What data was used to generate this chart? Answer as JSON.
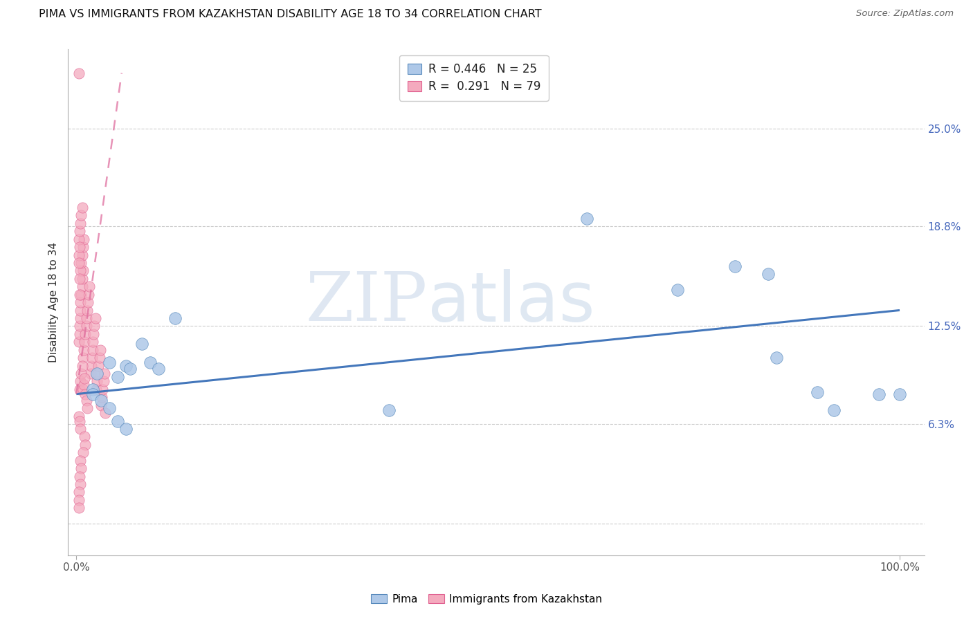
{
  "title": "PIMA VS IMMIGRANTS FROM KAZAKHSTAN DISABILITY AGE 18 TO 34 CORRELATION CHART",
  "source": "Source: ZipAtlas.com",
  "ylabel": "Disability Age 18 to 34",
  "xlim": [
    -0.01,
    1.03
  ],
  "ylim": [
    -0.02,
    0.3
  ],
  "xtick_vals": [
    0.0,
    1.0
  ],
  "xticklabels": [
    "0.0%",
    "100.0%"
  ],
  "ytick_vals": [
    0.0,
    0.063,
    0.125,
    0.188,
    0.25
  ],
  "ytick_labels": [
    "",
    "6.3%",
    "12.5%",
    "18.8%",
    "25.0%"
  ],
  "watermark_zip": "ZIP",
  "watermark_atlas": "atlas",
  "legend_r1": "R = 0.446",
  "legend_n1": "N = 25",
  "legend_r2": "R =  0.291",
  "legend_n2": "N = 79",
  "blue_fill": "#aec8e8",
  "blue_edge": "#5588bb",
  "pink_fill": "#f4aabe",
  "pink_edge": "#e06090",
  "blue_line": "#4477bb",
  "pink_line": "#dd6699",
  "grid_color": "#cccccc",
  "pima_x": [
    0.02,
    0.025,
    0.04,
    0.05,
    0.06,
    0.065,
    0.08,
    0.09,
    0.1,
    0.12,
    0.02,
    0.03,
    0.04,
    0.05,
    0.06,
    0.38,
    0.62,
    0.73,
    0.8,
    0.84,
    0.85,
    0.9,
    0.92,
    0.975,
    1.0
  ],
  "pima_y": [
    0.085,
    0.095,
    0.102,
    0.093,
    0.1,
    0.098,
    0.114,
    0.102,
    0.098,
    0.13,
    0.082,
    0.078,
    0.073,
    0.065,
    0.06,
    0.072,
    0.193,
    0.148,
    0.163,
    0.158,
    0.105,
    0.083,
    0.072,
    0.082,
    0.082
  ],
  "imm_x": [
    0.003,
    0.004,
    0.004,
    0.005,
    0.005,
    0.005,
    0.006,
    0.007,
    0.007,
    0.008,
    0.008,
    0.009,
    0.01,
    0.011,
    0.012,
    0.012,
    0.013,
    0.014,
    0.015,
    0.016,
    0.017,
    0.018,
    0.019,
    0.02,
    0.02,
    0.021,
    0.022,
    0.023,
    0.024,
    0.025,
    0.026,
    0.027,
    0.028,
    0.029,
    0.03,
    0.031,
    0.032,
    0.033,
    0.034,
    0.035,
    0.004,
    0.005,
    0.006,
    0.007,
    0.008,
    0.009,
    0.01,
    0.011,
    0.012,
    0.013,
    0.003,
    0.004,
    0.005,
    0.005,
    0.006,
    0.007,
    0.008,
    0.009,
    0.01,
    0.011,
    0.003,
    0.004,
    0.005,
    0.006,
    0.007,
    0.008,
    0.003,
    0.004,
    0.005,
    0.006,
    0.003,
    0.004,
    0.005,
    0.003,
    0.004,
    0.003,
    0.004,
    0.003,
    0.003
  ],
  "imm_y": [
    0.115,
    0.12,
    0.125,
    0.13,
    0.135,
    0.14,
    0.145,
    0.15,
    0.155,
    0.16,
    0.105,
    0.11,
    0.115,
    0.12,
    0.125,
    0.13,
    0.135,
    0.14,
    0.145,
    0.15,
    0.095,
    0.1,
    0.105,
    0.11,
    0.115,
    0.12,
    0.125,
    0.13,
    0.085,
    0.09,
    0.095,
    0.1,
    0.105,
    0.11,
    0.075,
    0.08,
    0.085,
    0.09,
    0.095,
    0.07,
    0.085,
    0.09,
    0.095,
    0.1,
    0.085,
    0.088,
    0.092,
    0.082,
    0.078,
    0.073,
    0.068,
    0.065,
    0.06,
    0.16,
    0.165,
    0.17,
    0.175,
    0.18,
    0.055,
    0.05,
    0.18,
    0.185,
    0.19,
    0.195,
    0.2,
    0.045,
    0.17,
    0.175,
    0.04,
    0.035,
    0.165,
    0.03,
    0.025,
    0.285,
    0.155,
    0.02,
    0.145,
    0.015,
    0.01
  ],
  "blue_trend": [
    0.0,
    1.0,
    0.082,
    0.135
  ],
  "pink_trend_start_x": 0.0,
  "pink_trend_end_x": 0.055,
  "pink_trend_start_y": 0.082,
  "pink_trend_end_y": 0.285
}
